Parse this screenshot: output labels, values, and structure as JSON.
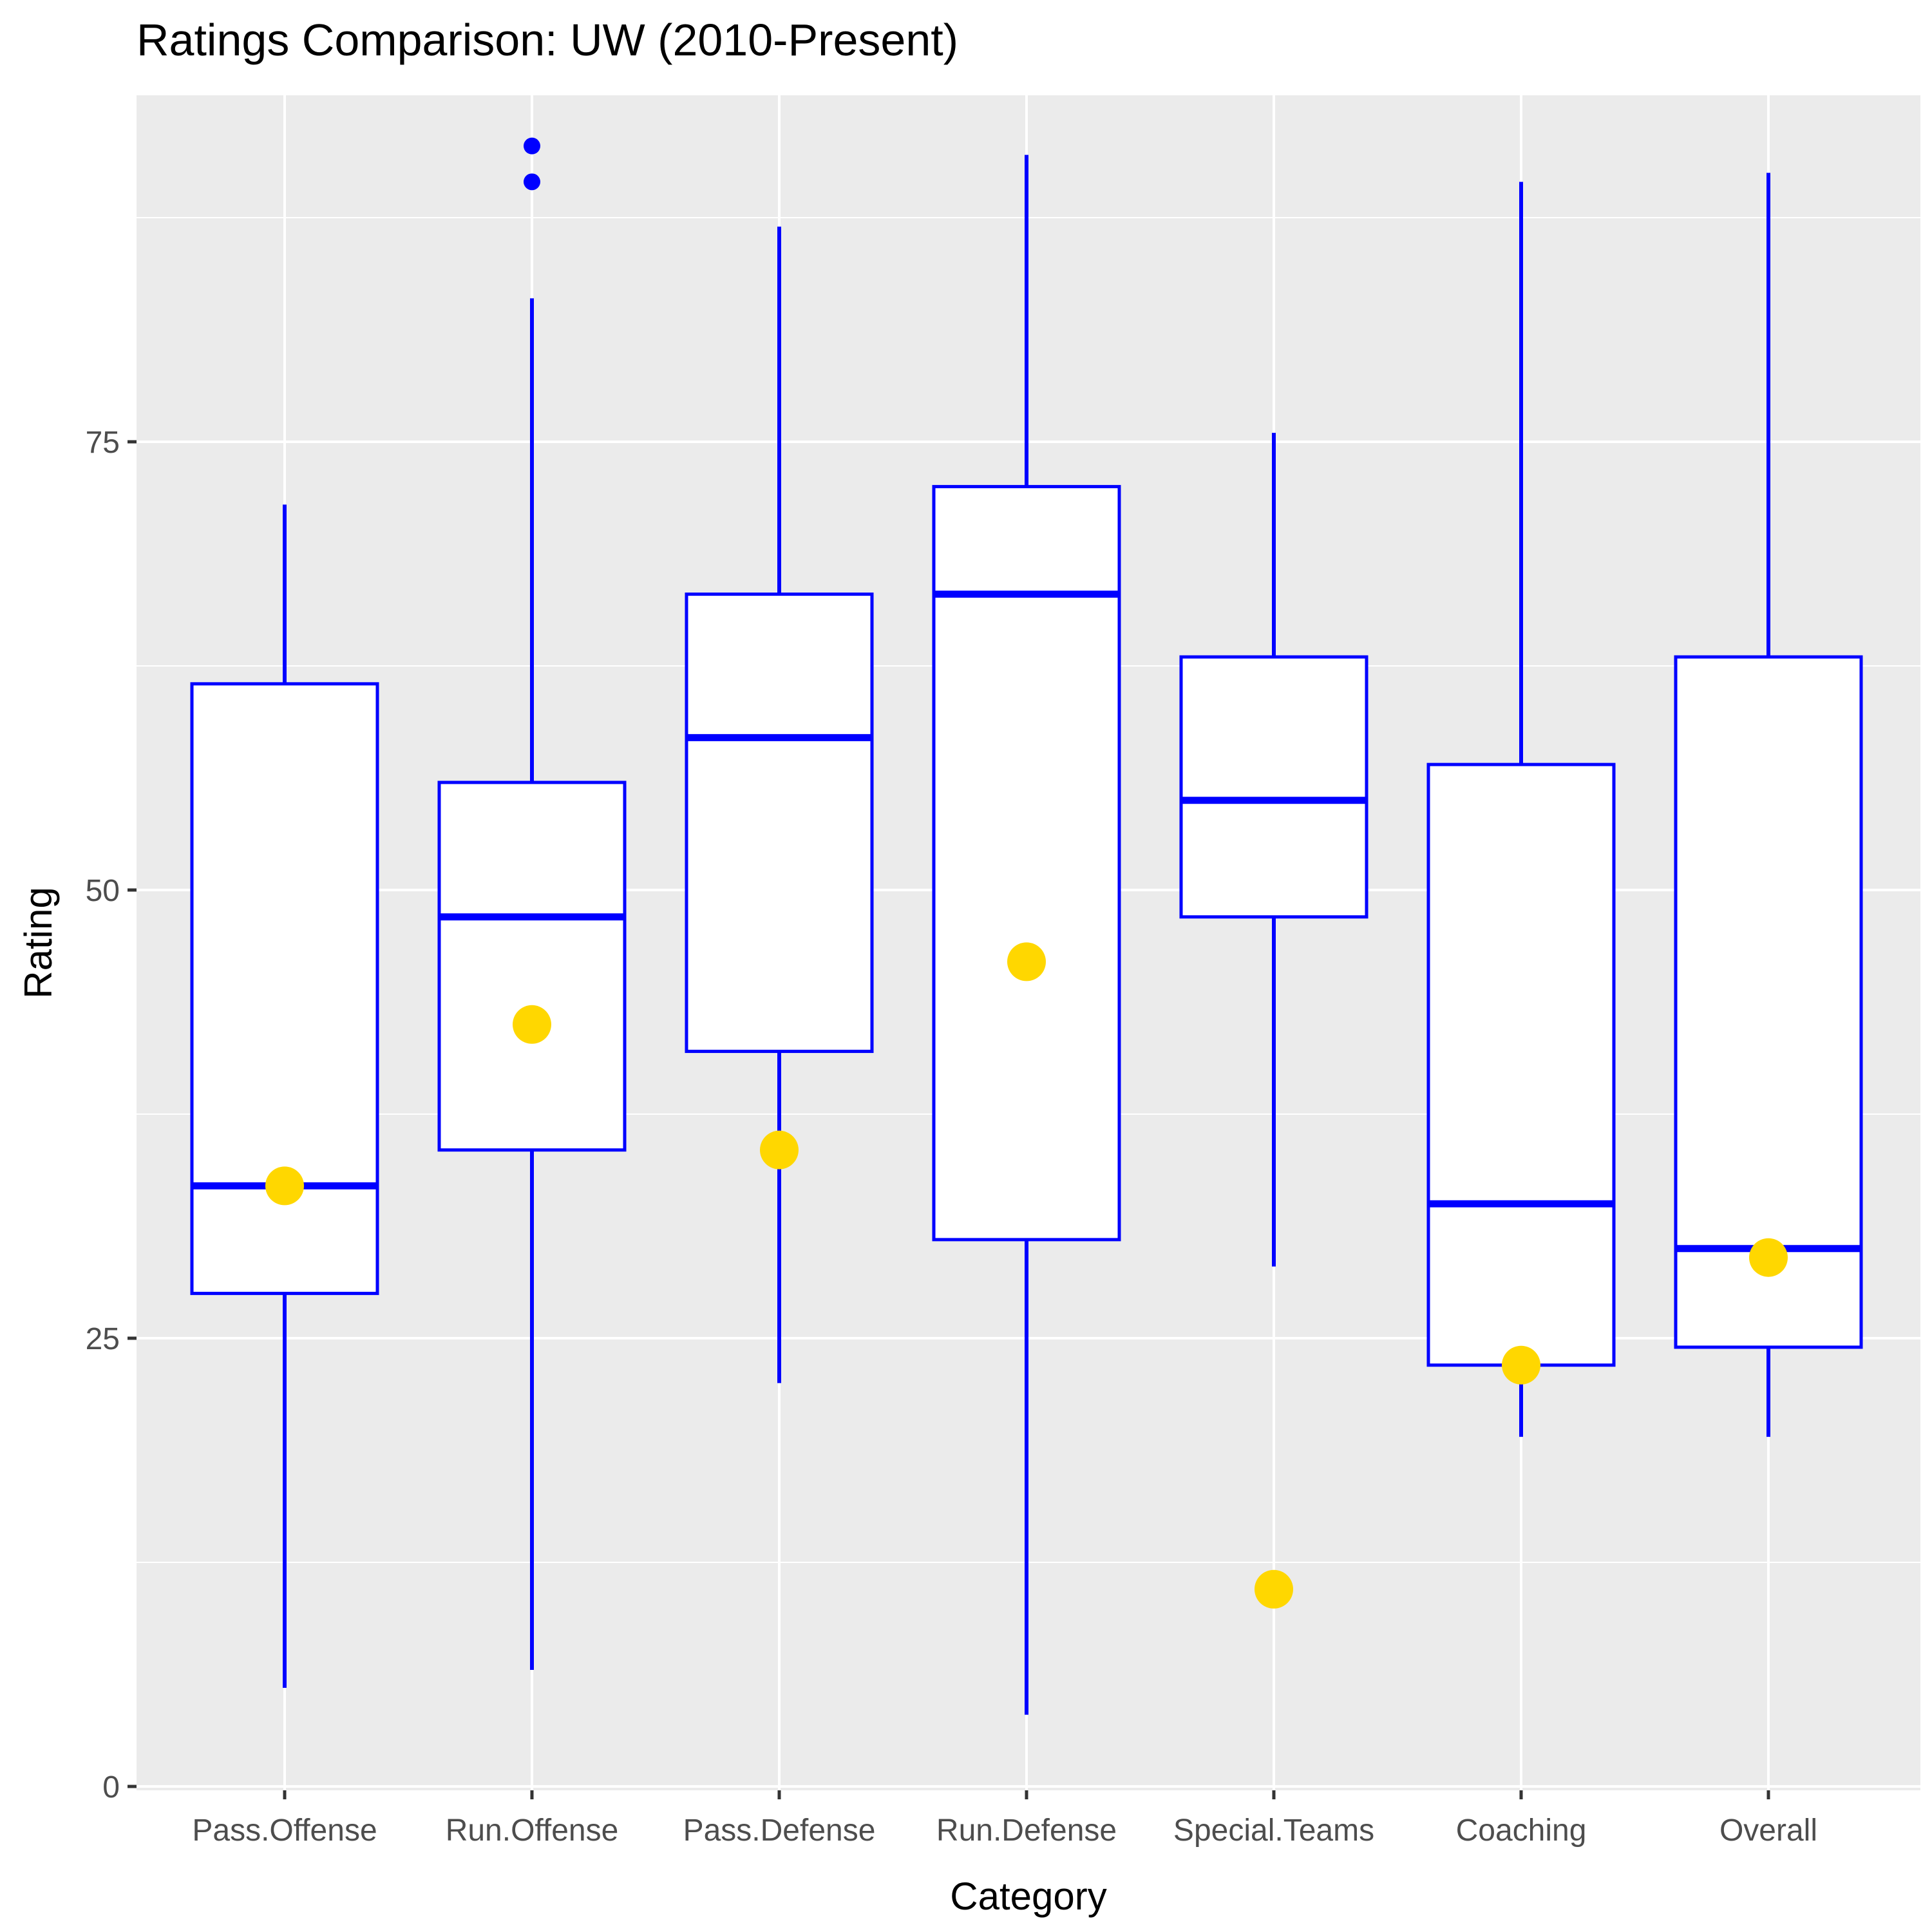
{
  "chart_data": {
    "type": "boxplot",
    "title": "Ratings Comparison: UW (2010-Present)",
    "xlabel": "Category",
    "ylabel": "Rating",
    "ylim": [
      0,
      93
    ],
    "y_ticks": [
      0,
      25,
      50,
      75
    ],
    "grid": true,
    "colors": {
      "panel": "#ebebeb",
      "grid": "#ffffff",
      "box_stroke": "#0000ff",
      "box_fill": "#ffffff",
      "highlight": "#ffd700",
      "tick": "#333333"
    },
    "categories": [
      "Pass.Offense",
      "Run.Offense",
      "Pass.Defense",
      "Run.Defense",
      "Special.Teams",
      "Coaching",
      "Overall"
    ],
    "boxes": [
      {
        "category": "Pass.Offense",
        "whisker_low": 5.5,
        "q1": 27.5,
        "median": 33.5,
        "q3": 61.5,
        "whisker_high": 71.5,
        "outliers": [],
        "highlight": 33.5
      },
      {
        "category": "Run.Offense",
        "whisker_low": 6.5,
        "q1": 35.5,
        "median": 48.5,
        "q3": 56.0,
        "whisker_high": 83.0,
        "outliers": [
          89.5,
          91.5
        ],
        "highlight": 42.5
      },
      {
        "category": "Pass.Defense",
        "whisker_low": 22.5,
        "q1": 41.0,
        "median": 58.5,
        "q3": 66.5,
        "whisker_high": 87.0,
        "outliers": [],
        "highlight": 35.5
      },
      {
        "category": "Run.Defense",
        "whisker_low": 4.0,
        "q1": 30.5,
        "median": 66.5,
        "q3": 72.5,
        "whisker_high": 91.0,
        "outliers": [],
        "highlight": 46.0
      },
      {
        "category": "Special.Teams",
        "whisker_low": 29.0,
        "q1": 48.5,
        "median": 55.0,
        "q3": 63.0,
        "whisker_high": 75.5,
        "outliers": [],
        "highlight": 11.0
      },
      {
        "category": "Coaching",
        "whisker_low": 19.5,
        "q1": 23.5,
        "median": 32.5,
        "q3": 57.0,
        "whisker_high": 89.5,
        "outliers": [],
        "highlight": 23.5
      },
      {
        "category": "Overall",
        "whisker_low": 19.5,
        "q1": 24.5,
        "median": 30.0,
        "q3": 63.0,
        "whisker_high": 90.0,
        "outliers": [],
        "highlight": 29.5
      }
    ]
  }
}
